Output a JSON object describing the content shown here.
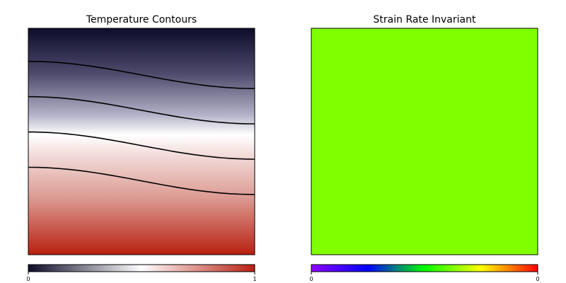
{
  "chart_data": [
    {
      "type": "heatmap",
      "title": "Temperature Contours",
      "colormap": [
        "#0d0c2a",
        "#ffffff",
        "#b82010"
      ],
      "value_range": [
        0,
        1
      ],
      "contour_levels": [
        0.2,
        0.4,
        0.6,
        0.8
      ],
      "colorbar": {
        "min_label": "0",
        "max_label": "1"
      },
      "grid": false
    },
    {
      "type": "heatmap",
      "title": "Strain Rate Invariant",
      "colormap": [
        "#8f00ff",
        "#0000ff",
        "#00ff00",
        "#ffff00",
        "#ff0000"
      ],
      "uniform_color": "#80ff00",
      "colorbar": {
        "min_label": "0",
        "max_label": "0"
      },
      "grid": false
    }
  ]
}
